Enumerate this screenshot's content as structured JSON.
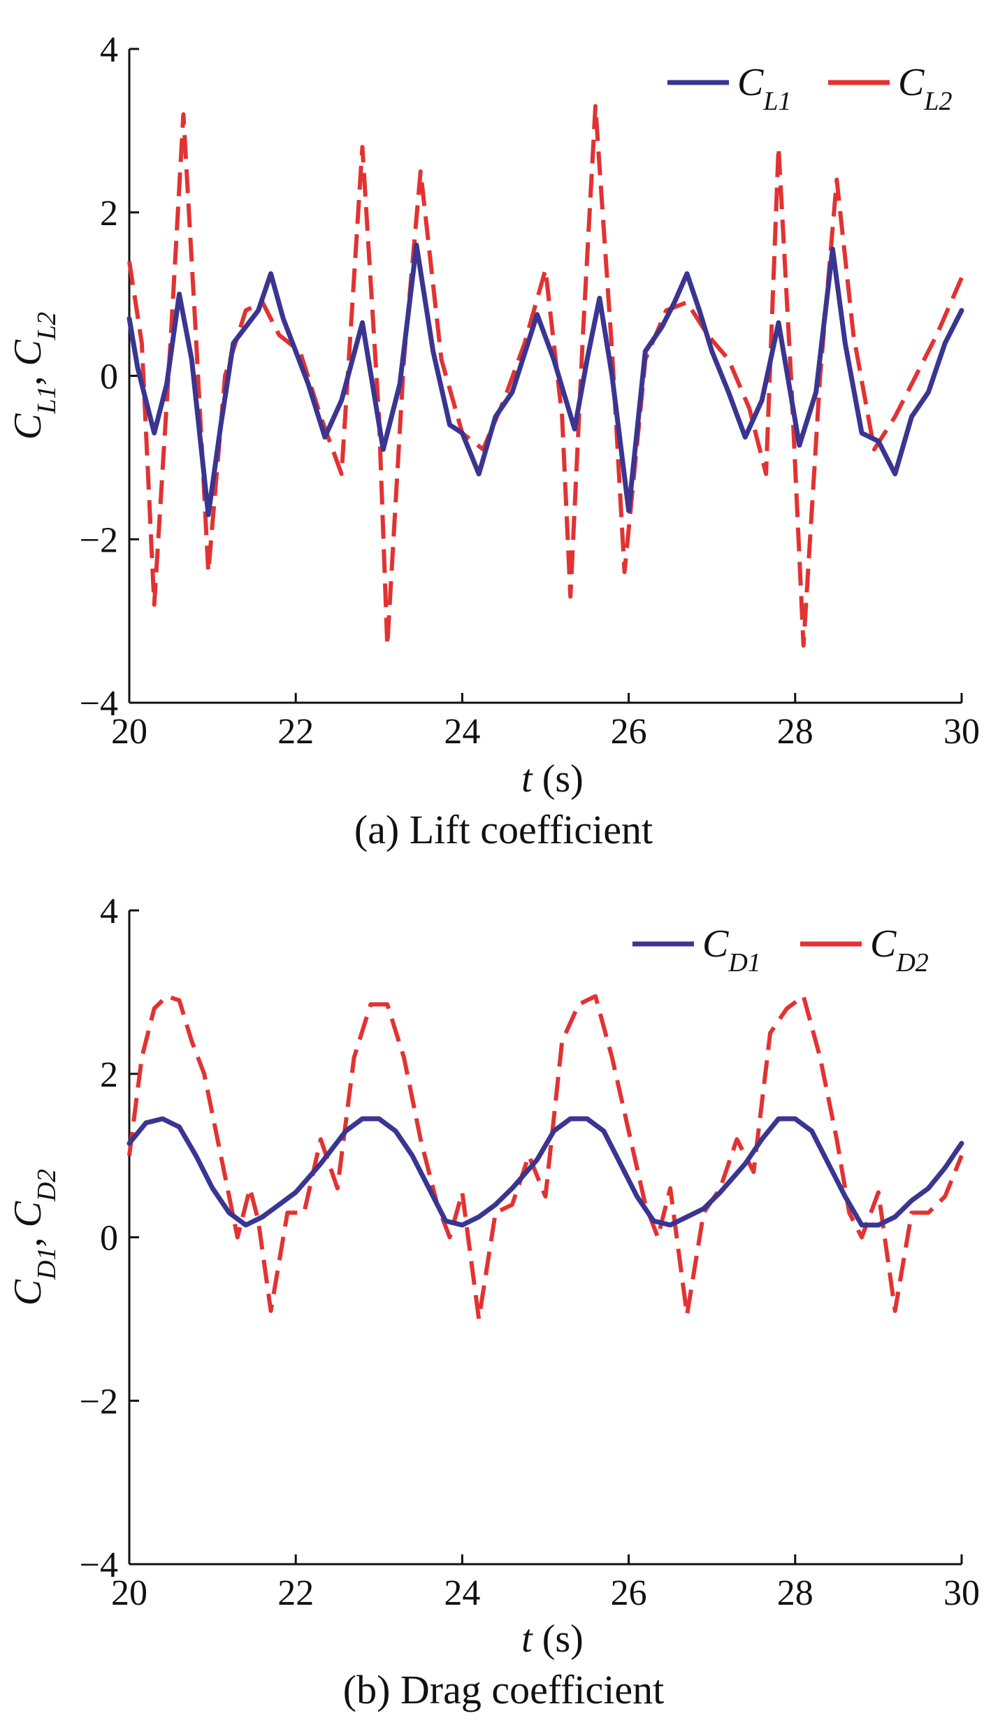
{
  "chart_data": [
    {
      "id": "lift",
      "type": "line",
      "caption": "(a) Lift coefficient",
      "xlabel": {
        "italic": "t",
        "rest": " (s)"
      },
      "ylabel": {
        "parts": [
          {
            "t": "C",
            "i": true
          },
          {
            "t": "L1",
            "sub": true,
            "i": true
          },
          {
            "t": ", "
          },
          {
            "t": "C",
            "i": true
          },
          {
            "t": "L2",
            "sub": true,
            "i": true
          }
        ]
      },
      "xlim": [
        20,
        30
      ],
      "ylim": [
        -4,
        4
      ],
      "xticks": [
        20,
        22,
        24,
        26,
        28,
        30
      ],
      "yticks": [
        -4,
        -2,
        0,
        2,
        4
      ],
      "xtick_labels": [
        "20",
        "22",
        "24",
        "26",
        "28",
        "30"
      ],
      "ytick_labels": [
        "−4",
        "−2",
        "0",
        "2",
        "4"
      ],
      "legend_position": "top-right",
      "series": [
        {
          "name": "C_L1",
          "base": "C",
          "sub": "L1",
          "color": "#3a3591",
          "style": "solid",
          "x": [
            20.0,
            20.1,
            20.3,
            20.45,
            20.6,
            20.75,
            20.95,
            21.1,
            21.25,
            21.4,
            21.55,
            21.7,
            21.85,
            22.0,
            22.15,
            22.35,
            22.55,
            22.8,
            23.05,
            23.25,
            23.45,
            23.65,
            23.85,
            24.0,
            24.2,
            24.4,
            24.6,
            24.9,
            25.1,
            25.35,
            25.5,
            25.65,
            25.8,
            26.0,
            26.2,
            26.4,
            26.55,
            26.7,
            26.85,
            27.0,
            27.2,
            27.4,
            27.6,
            27.8,
            28.05,
            28.25,
            28.45,
            28.6,
            28.8,
            29.0,
            29.2,
            29.4,
            29.6,
            29.8,
            30.0
          ],
          "y": [
            0.7,
            0.1,
            -0.7,
            -0.1,
            1.0,
            0.2,
            -1.7,
            -0.6,
            0.4,
            0.6,
            0.8,
            1.25,
            0.7,
            0.3,
            -0.1,
            -0.75,
            -0.3,
            0.65,
            -0.9,
            -0.1,
            1.6,
            0.3,
            -0.6,
            -0.7,
            -1.2,
            -0.5,
            -0.2,
            0.75,
            0.2,
            -0.65,
            0.2,
            0.95,
            0.0,
            -1.65,
            0.3,
            0.6,
            0.9,
            1.25,
            0.8,
            0.3,
            -0.2,
            -0.75,
            -0.3,
            0.65,
            -0.85,
            -0.2,
            1.55,
            0.4,
            -0.7,
            -0.8,
            -1.2,
            -0.5,
            -0.2,
            0.4,
            0.8
          ]
        },
        {
          "name": "C_L2",
          "base": "C",
          "sub": "L2",
          "color": "#e23232",
          "style": "dashed",
          "x": [
            20.0,
            20.15,
            20.3,
            20.5,
            20.65,
            20.8,
            20.95,
            21.15,
            21.4,
            21.6,
            21.8,
            22.05,
            22.3,
            22.55,
            22.8,
            23.0,
            23.1,
            23.3,
            23.5,
            23.75,
            24.0,
            24.25,
            24.5,
            24.75,
            25.0,
            25.2,
            25.3,
            25.45,
            25.6,
            25.8,
            25.95,
            26.2,
            26.45,
            26.7,
            26.95,
            27.2,
            27.45,
            27.65,
            27.8,
            27.95,
            28.1,
            28.3,
            28.5,
            28.7,
            28.95,
            29.2,
            29.45,
            29.7,
            30.0
          ],
          "y": [
            1.4,
            0.4,
            -2.8,
            0.5,
            3.2,
            0.5,
            -2.4,
            0.0,
            0.8,
            0.9,
            0.5,
            0.3,
            -0.5,
            -1.2,
            2.8,
            -0.5,
            -3.3,
            0.2,
            2.5,
            0.2,
            -0.7,
            -0.9,
            -0.3,
            0.4,
            1.3,
            -0.5,
            -2.7,
            0.5,
            3.3,
            0.3,
            -2.4,
            0.2,
            0.8,
            0.9,
            0.5,
            0.2,
            -0.4,
            -1.2,
            2.8,
            0.0,
            -3.3,
            0.0,
            2.4,
            0.5,
            -0.9,
            -0.5,
            0.0,
            0.5,
            1.2
          ]
        }
      ]
    },
    {
      "id": "drag",
      "type": "line",
      "caption": "(b) Drag coefficient",
      "xlabel": {
        "italic": "t",
        "rest": " (s)"
      },
      "ylabel": {
        "parts": [
          {
            "t": "C",
            "i": true
          },
          {
            "t": "D1",
            "sub": true,
            "i": true
          },
          {
            "t": ", "
          },
          {
            "t": "C",
            "i": true
          },
          {
            "t": "D2",
            "sub": true,
            "i": true
          }
        ]
      },
      "xlim": [
        20,
        30
      ],
      "ylim": [
        -4,
        4
      ],
      "xticks": [
        20,
        22,
        24,
        26,
        28,
        30
      ],
      "yticks": [
        -4,
        -2,
        0,
        2,
        4
      ],
      "xtick_labels": [
        "20",
        "22",
        "24",
        "26",
        "28",
        "30"
      ],
      "ytick_labels": [
        "−4",
        "−2",
        "0",
        "2",
        "4"
      ],
      "legend_position": "top-right",
      "series": [
        {
          "name": "C_D1",
          "base": "C",
          "sub": "D1",
          "color": "#3a3591",
          "style": "solid",
          "x": [
            20.0,
            20.2,
            20.4,
            20.6,
            20.8,
            21.0,
            21.2,
            21.4,
            21.6,
            21.8,
            22.0,
            22.3,
            22.6,
            22.8,
            23.0,
            23.2,
            23.4,
            23.6,
            23.8,
            24.0,
            24.2,
            24.4,
            24.6,
            24.9,
            25.1,
            25.3,
            25.5,
            25.7,
            25.9,
            26.1,
            26.3,
            26.5,
            26.7,
            26.9,
            27.1,
            27.4,
            27.6,
            27.8,
            28.0,
            28.2,
            28.4,
            28.6,
            28.8,
            29.0,
            29.2,
            29.4,
            29.6,
            29.8,
            30.0
          ],
          "y": [
            1.15,
            1.4,
            1.45,
            1.35,
            1.0,
            0.6,
            0.3,
            0.15,
            0.25,
            0.4,
            0.55,
            0.9,
            1.3,
            1.45,
            1.45,
            1.3,
            1.0,
            0.6,
            0.2,
            0.15,
            0.25,
            0.4,
            0.6,
            0.95,
            1.3,
            1.45,
            1.45,
            1.3,
            0.9,
            0.5,
            0.2,
            0.15,
            0.25,
            0.35,
            0.55,
            0.9,
            1.2,
            1.45,
            1.45,
            1.3,
            0.9,
            0.5,
            0.15,
            0.15,
            0.25,
            0.45,
            0.6,
            0.85,
            1.15
          ]
        },
        {
          "name": "C_D2",
          "base": "C",
          "sub": "D2",
          "color": "#e23232",
          "style": "dashed",
          "x": [
            20.0,
            20.15,
            20.3,
            20.45,
            20.6,
            20.75,
            20.9,
            21.1,
            21.3,
            21.45,
            21.55,
            21.7,
            21.9,
            22.1,
            22.3,
            22.5,
            22.7,
            22.9,
            23.1,
            23.3,
            23.5,
            23.7,
            23.85,
            24.0,
            24.2,
            24.4,
            24.6,
            24.8,
            25.0,
            25.2,
            25.4,
            25.6,
            25.8,
            26.0,
            26.2,
            26.35,
            26.5,
            26.7,
            26.9,
            27.1,
            27.3,
            27.5,
            27.7,
            27.9,
            28.1,
            28.3,
            28.5,
            28.65,
            28.8,
            29.0,
            29.2,
            29.4,
            29.6,
            29.8,
            30.0
          ],
          "y": [
            1.0,
            2.2,
            2.8,
            2.95,
            2.9,
            2.4,
            2.0,
            1.0,
            0.0,
            0.6,
            0.2,
            -0.9,
            0.3,
            0.3,
            1.2,
            0.6,
            2.2,
            2.85,
            2.85,
            2.2,
            1.2,
            0.4,
            0.0,
            0.55,
            -1.0,
            0.3,
            0.4,
            1.0,
            0.5,
            2.4,
            2.85,
            2.95,
            2.2,
            1.3,
            0.4,
            0.0,
            0.6,
            -0.95,
            0.3,
            0.6,
            1.2,
            0.8,
            2.5,
            2.8,
            2.95,
            2.2,
            1.2,
            0.3,
            0.0,
            0.55,
            -0.9,
            0.3,
            0.3,
            0.5,
            1.0
          ]
        }
      ]
    }
  ]
}
